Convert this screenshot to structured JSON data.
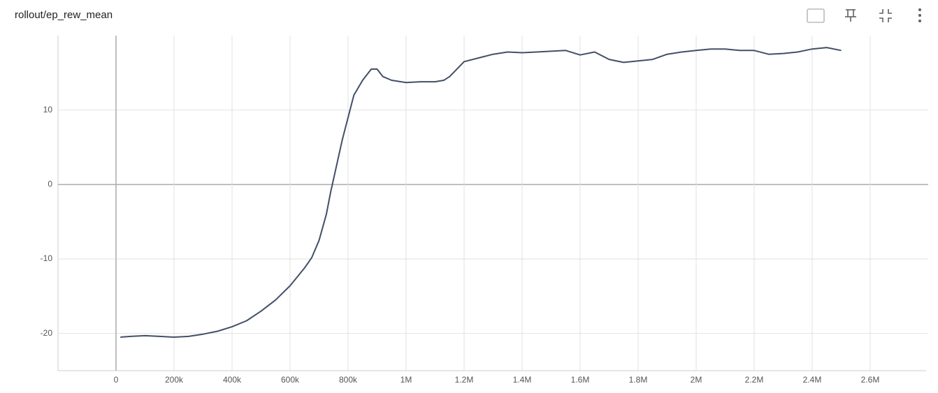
{
  "chart_data": {
    "type": "line",
    "title": "rollout/ep_rew_mean",
    "xlim": [
      -200000,
      2800000
    ],
    "ylim": [
      -25,
      20
    ],
    "xticks": [
      0,
      {
        "value": 200000,
        "label": "200k"
      },
      {
        "value": 400000,
        "label": "400k"
      },
      {
        "value": 600000,
        "label": "600k"
      },
      {
        "value": 800000,
        "label": "800k"
      },
      {
        "value": 1000000,
        "label": "1M"
      },
      {
        "value": 1200000,
        "label": "1.2M"
      },
      {
        "value": 1400000,
        "label": "1.4M"
      },
      {
        "value": 1600000,
        "label": "1.6M"
      },
      {
        "value": 1800000,
        "label": "1.8M"
      },
      {
        "value": 2000000,
        "label": "2M"
      },
      {
        "value": 2200000,
        "label": "2.2M"
      },
      {
        "value": 2400000,
        "label": "2.4M"
      },
      {
        "value": 2600000,
        "label": "2.6M"
      }
    ],
    "yticks": [
      -20,
      -10,
      0,
      10
    ],
    "grid": true,
    "x": [
      15000,
      50000,
      100000,
      150000,
      200000,
      250000,
      300000,
      350000,
      400000,
      450000,
      500000,
      550000,
      600000,
      650000,
      675000,
      700000,
      725000,
      740000,
      760000,
      780000,
      800000,
      820000,
      850000,
      880000,
      900000,
      920000,
      950000,
      1000000,
      1050000,
      1100000,
      1130000,
      1150000,
      1200000,
      1250000,
      1300000,
      1350000,
      1400000,
      1450000,
      1500000,
      1550000,
      1600000,
      1650000,
      1700000,
      1750000,
      1800000,
      1850000,
      1900000,
      1950000,
      2000000,
      2050000,
      2100000,
      2150000,
      2200000,
      2250000,
      2300000,
      2350000,
      2400000,
      2450000,
      2500000
    ],
    "series": [
      {
        "color": "#425066",
        "values": [
          -20.5,
          -20.4,
          -20.3,
          -20.4,
          -20.5,
          -20.4,
          -20.1,
          -19.7,
          -19.1,
          -18.3,
          -17,
          -15.5,
          -13.6,
          -11.2,
          -9.8,
          -7.5,
          -4,
          -1,
          2.5,
          6,
          9,
          12,
          14,
          15.5,
          15.5,
          14.5,
          14,
          13.7,
          13.8,
          13.8,
          14,
          14.5,
          16.5,
          17,
          17.5,
          17.8,
          17.7,
          17.8,
          17.9,
          18,
          17.4,
          17.8,
          16.8,
          16.4,
          16.6,
          16.8,
          17.5,
          17.8,
          18,
          18.2,
          18.2,
          18,
          18,
          17.5,
          17.6,
          17.8,
          18.2,
          18.4,
          18
        ]
      }
    ]
  }
}
